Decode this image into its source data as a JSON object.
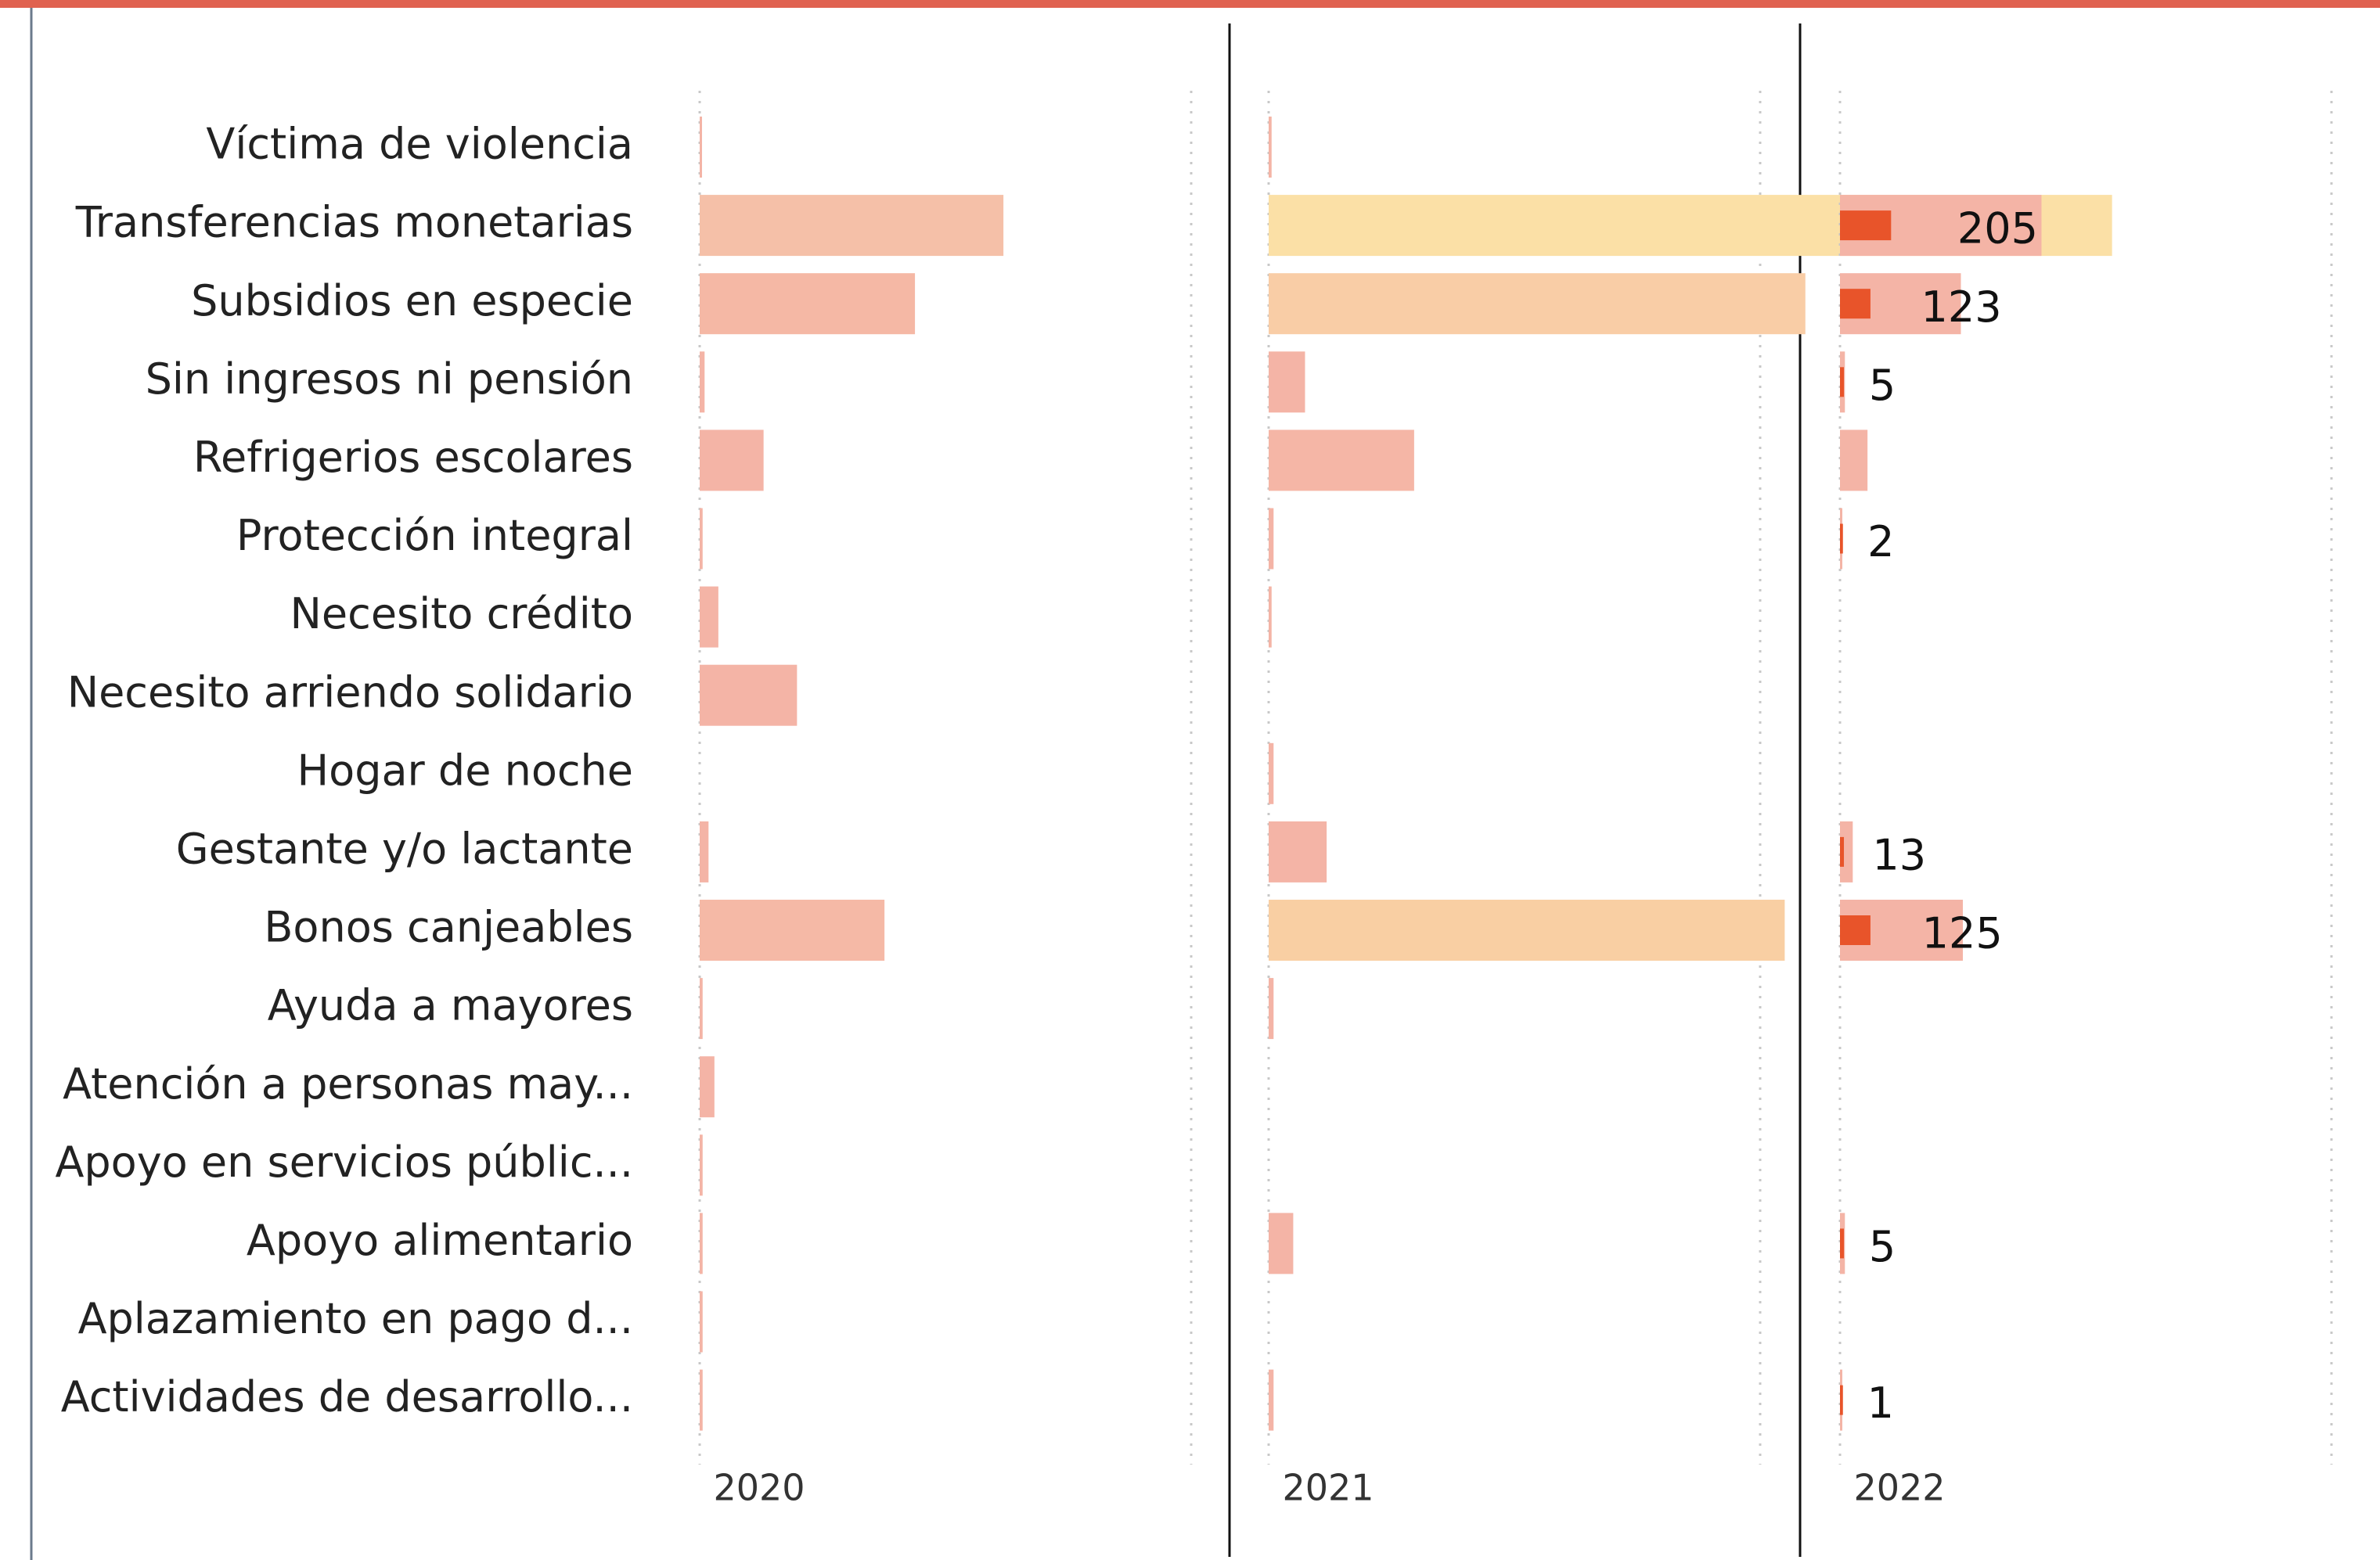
{
  "chart_data": {
    "type": "bar",
    "orientation": "horizontal",
    "categories": [
      "Víctima de violencia",
      "Transferencias monetarias",
      "Subsidios en especie",
      "Sin ingresos ni pensión",
      "Refrigerios escolares",
      "Protección integral",
      "Necesito crédito",
      "Necesito arriendo solidario",
      "Hogar de noche",
      "Gestante y/o lactante",
      "Bonos canjeables",
      "Ayuda a mayores",
      "Atención a personas may...",
      "Apoyo en servicios públic...",
      "Apoyo alimentario",
      "Aplazamiento en pago d...",
      "Actividades de desarrollo..."
    ],
    "xlim": [
      0,
      1000
    ],
    "grid_lines": [
      0,
      500
    ],
    "panels": [
      {
        "title": "2020",
        "series": [
          {
            "values": [
              2,
              309,
              219,
              5,
              65,
              3,
              19,
              99,
              null,
              9,
              188,
              3,
              15,
              3,
              3,
              3,
              3
            ],
            "color": "#f4b4a6",
            "colors": [
              "#f4b4a6",
              "#f5c0a8",
              "#f5b8a5",
              "#f4b4a6",
              "#f4b4a6",
              "#f4b4a6",
              "#f4b4a6",
              "#f4b4a6",
              "#f4b4a6",
              "#f4b4a6",
              "#f5b9a6",
              "#f4b4a6",
              "#f4b4a6",
              "#f4b4a6",
              "#f4b4a6",
              "#f4b4a6",
              "#f4b4a6"
            ]
          }
        ]
      },
      {
        "title": "2021",
        "series": [
          {
            "values": [
              3,
              858,
              546,
              37,
              148,
              5,
              3,
              null,
              5,
              59,
              525,
              5,
              null,
              null,
              25,
              null,
              5
            ],
            "color": "#f4b4a6",
            "colors": [
              "#f4b4a6",
              "#fbe0a6",
              "#f9cda6",
              "#f4b4a6",
              "#f5b6a6",
              "#f4b4a6",
              "#f4b4a6",
              "#f4b4a6",
              "#f4b4a6",
              "#f4b4a6",
              "#f9cfa3",
              "#f4b4a6",
              "#f4b4a6",
              "#f4b4a6",
              "#f4b4a6",
              "#f4b4a6",
              "#f4b4a6"
            ]
          }
        ]
      },
      {
        "title": "2022",
        "series": [
          {
            "values": [
              null,
              205,
              123,
              5,
              28,
              2,
              null,
              null,
              null,
              13,
              125,
              null,
              null,
              null,
              5,
              null,
              1
            ],
            "value_labels": [
              null,
              "205",
              "123",
              "5",
              null,
              "2",
              null,
              null,
              null,
              "13",
              "125",
              null,
              null,
              null,
              "5",
              null,
              "1"
            ],
            "color": "#f4b4a6"
          },
          {
            "values": [
              null,
              52,
              31,
              4,
              null,
              3,
              null,
              null,
              null,
              4,
              31,
              null,
              null,
              null,
              4,
              null,
              3
            ],
            "color": "#e8542a"
          }
        ]
      }
    ]
  }
}
